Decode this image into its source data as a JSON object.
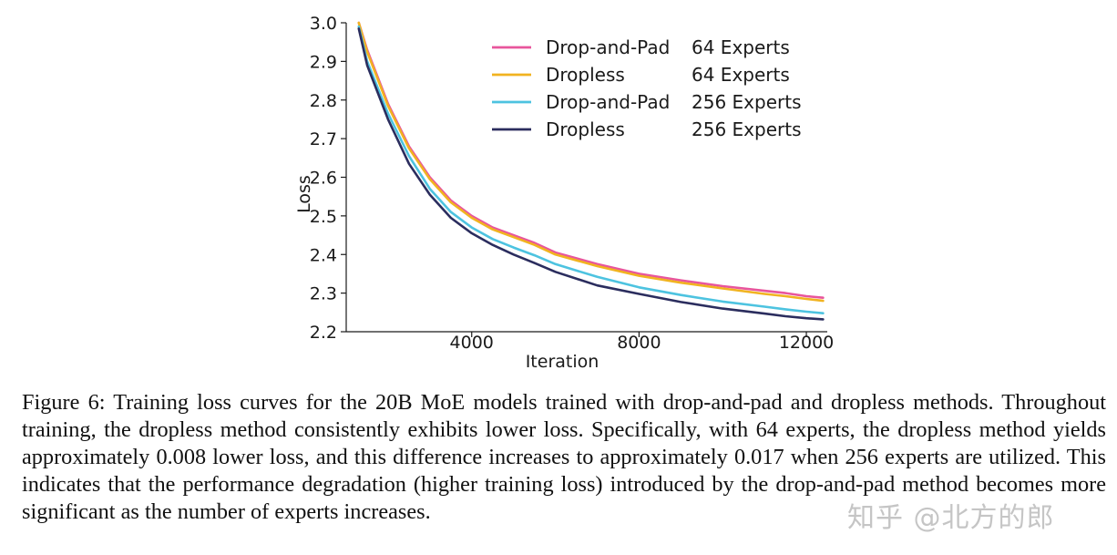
{
  "chart_data": {
    "type": "line",
    "title": "",
    "xlabel": "Iteration",
    "ylabel": "Loss",
    "xlim": [
      1000,
      12500
    ],
    "ylim": [
      2.2,
      3.0
    ],
    "xticks": [
      4000,
      8000,
      12000
    ],
    "xtick_labels": [
      "4000",
      "8000",
      "12000"
    ],
    "yticks": [
      2.2,
      2.3,
      2.4,
      2.5,
      2.6,
      2.7,
      2.8,
      2.9,
      3.0
    ],
    "ytick_labels": [
      "2.2",
      "2.3",
      "2.4",
      "2.5",
      "2.6",
      "2.7",
      "2.8",
      "2.9",
      "3.0"
    ],
    "grid": false,
    "legend_position": "top-right",
    "x": [
      1300,
      1500,
      2000,
      2500,
      3000,
      3500,
      4000,
      4500,
      5000,
      5500,
      6000,
      7000,
      8000,
      9000,
      10000,
      11000,
      11500,
      12000,
      12400
    ],
    "series": [
      {
        "name": "Drop-and-Pad",
        "experts": "64 Experts",
        "color": "#e8559c",
        "values": [
          3.0,
          2.93,
          2.79,
          2.68,
          2.6,
          2.54,
          2.5,
          2.47,
          2.45,
          2.43,
          2.405,
          2.375,
          2.35,
          2.333,
          2.318,
          2.306,
          2.3,
          2.292,
          2.288
        ]
      },
      {
        "name": "Dropless",
        "experts": "64 Experts",
        "color": "#f1b320",
        "values": [
          3.0,
          2.925,
          2.785,
          2.675,
          2.595,
          2.535,
          2.495,
          2.465,
          2.445,
          2.425,
          2.4,
          2.37,
          2.345,
          2.327,
          2.312,
          2.298,
          2.292,
          2.285,
          2.28
        ]
      },
      {
        "name": "Drop-and-Pad",
        "experts": "256 Experts",
        "color": "#4dc3e0",
        "values": [
          2.99,
          2.9,
          2.765,
          2.655,
          2.57,
          2.51,
          2.47,
          2.44,
          2.418,
          2.398,
          2.375,
          2.342,
          2.315,
          2.295,
          2.278,
          2.265,
          2.258,
          2.252,
          2.248
        ]
      },
      {
        "name": "Dropless",
        "experts": "256 Experts",
        "color": "#2b2d5e",
        "values": [
          2.985,
          2.89,
          2.75,
          2.635,
          2.555,
          2.495,
          2.455,
          2.425,
          2.4,
          2.378,
          2.355,
          2.32,
          2.298,
          2.277,
          2.26,
          2.247,
          2.24,
          2.235,
          2.232
        ]
      }
    ]
  },
  "caption": "Figure 6: Training loss curves for the 20B MoE models trained with drop-and-pad and dropless methods. Throughout training, the dropless method consistently exhibits lower loss. Specifically, with 64 experts, the dropless method yields approximately 0.008 lower loss, and this difference increases to approximately 0.017 when 256 experts are utilized. This indicates that the performance degradation (higher training loss) introduced by the drop-and-pad method becomes more significant as the number of experts increases.",
  "watermark": "知乎 @北方的郎"
}
